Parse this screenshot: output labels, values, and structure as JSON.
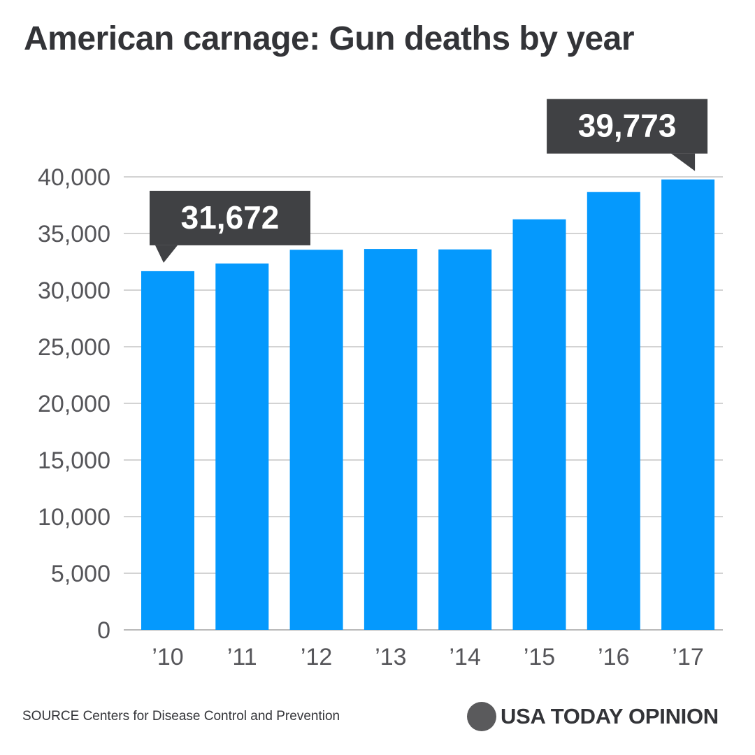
{
  "chart_data": {
    "type": "bar",
    "title": "American carnage: Gun deaths by year",
    "categories": [
      "’10",
      "’11",
      "’12",
      "’13",
      "’14",
      "’15",
      "’16",
      "’17"
    ],
    "values": [
      31672,
      32351,
      33563,
      33636,
      33594,
      36252,
      38658,
      39773
    ],
    "ylim": [
      0,
      40000
    ],
    "yticks": [
      0,
      5000,
      10000,
      15000,
      20000,
      25000,
      30000,
      35000,
      40000
    ],
    "ytick_labels": [
      "0",
      "5,000",
      "10,000",
      "15,000",
      "20,000",
      "25,000",
      "30,000",
      "35,000",
      "40,000"
    ],
    "xlabel": "",
    "ylabel": "",
    "grid": true,
    "annotations": [
      {
        "category": "’10",
        "text": "31,672"
      },
      {
        "category": "’17",
        "text": "39,773"
      }
    ],
    "bar_color": "#0599fd",
    "callout_color": "#404144",
    "grid_color": "#b9b9b9",
    "axis_label_color": "#555559"
  },
  "footer": {
    "source": "SOURCE Centers for Disease Control and Prevention",
    "brand": "USA TODAY OPINION"
  }
}
